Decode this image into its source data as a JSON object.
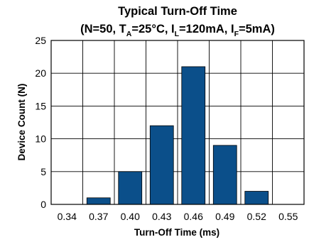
{
  "chart_data": {
    "type": "bar",
    "title": "Typical Turn-Off Time",
    "subtitle": {
      "open": "(N=50, T",
      "sub1": "A",
      "mid1": "=25°C, I",
      "sub2": "L",
      "mid2": "=120mA, I",
      "sub3": "F",
      "close": "=5mA)"
    },
    "xlabel": "Turn-Off Time (ms)",
    "ylabel": "Device Count (N)",
    "categories": [
      "0.34",
      "0.37",
      "0.40",
      "0.43",
      "0.46",
      "0.49",
      "0.52",
      "0.55"
    ],
    "values": [
      0,
      1,
      5,
      12,
      21,
      9,
      2,
      0
    ],
    "ylim": [
      0,
      25
    ],
    "yticks": [
      "0",
      "5",
      "10",
      "15",
      "20",
      "25"
    ],
    "grid": true,
    "bar_color": "#0b4f8a"
  }
}
